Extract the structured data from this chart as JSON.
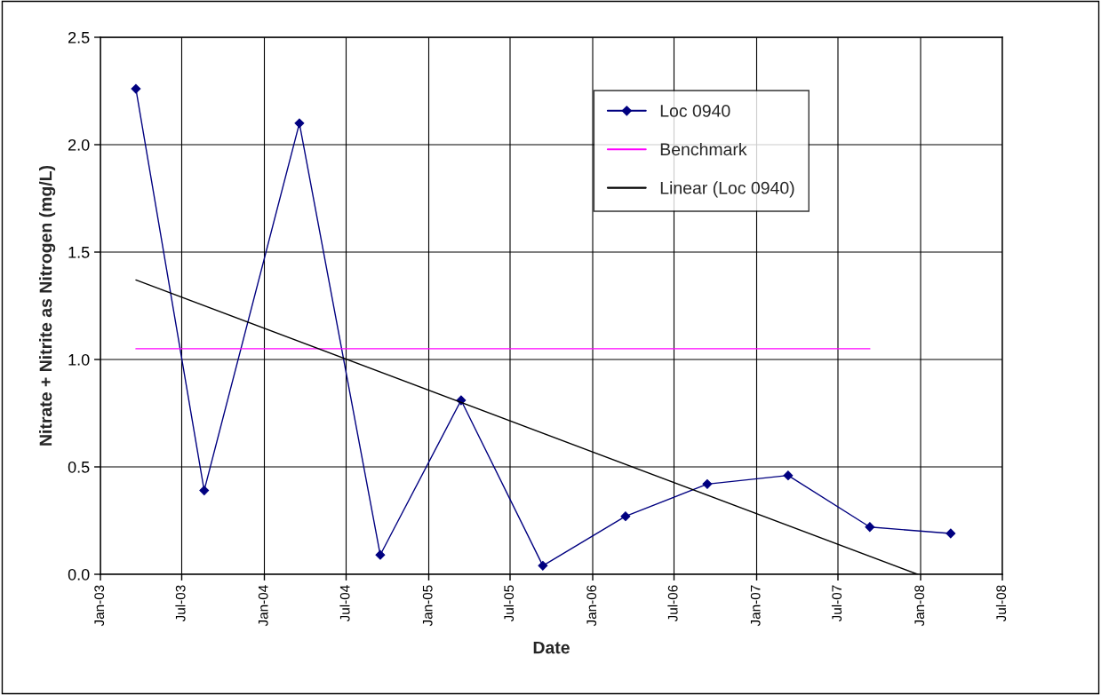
{
  "chart_data": {
    "type": "line",
    "xlabel": "Date",
    "ylabel": "Nitrate + Nitrite as Nitrogen (mg/L)",
    "x": [
      "2003-03-21",
      "2003-08-20",
      "2004-03-19",
      "2004-09-15",
      "2005-03-14",
      "2005-09-12",
      "2006-03-15",
      "2006-09-13",
      "2007-03-12",
      "2007-09-10",
      "2008-03-08"
    ],
    "series": [
      {
        "name": "Loc 0940",
        "color": "#000080",
        "marker": "diamond",
        "values": [
          2.26,
          0.39,
          2.1,
          0.09,
          0.81,
          0.04,
          0.27,
          0.42,
          0.46,
          0.22,
          0.19
        ]
      },
      {
        "name": "Benchmark",
        "color": "#ff00ff",
        "marker": "none",
        "x": [
          "2003-03-21",
          "2007-09-10"
        ],
        "values": [
          1.05,
          1.05
        ]
      },
      {
        "name": "Linear (Loc 0940)",
        "color": "#000000",
        "marker": "none",
        "x": [
          "2003-03-21",
          "2007-12-25"
        ],
        "values": [
          1.37,
          0.0
        ]
      }
    ],
    "xlim": [
      "2003-01-01",
      "2008-07-01"
    ],
    "xticks": [
      {
        "value": "2003-01-01",
        "label": "Jan-03"
      },
      {
        "value": "2003-07-01",
        "label": "Jul-03"
      },
      {
        "value": "2004-01-01",
        "label": "Jan-04"
      },
      {
        "value": "2004-07-01",
        "label": "Jul-04"
      },
      {
        "value": "2005-01-01",
        "label": "Jan-05"
      },
      {
        "value": "2005-07-01",
        "label": "Jul-05"
      },
      {
        "value": "2006-01-01",
        "label": "Jan-06"
      },
      {
        "value": "2006-07-01",
        "label": "Jul-06"
      },
      {
        "value": "2007-01-01",
        "label": "Jan-07"
      },
      {
        "value": "2007-07-01",
        "label": "Jul-07"
      },
      {
        "value": "2008-01-01",
        "label": "Jan-08"
      },
      {
        "value": "2008-07-01",
        "label": "Jul-08"
      }
    ],
    "ylim": [
      0,
      2.5
    ],
    "yticks": [
      {
        "value": 0,
        "label": "0.0"
      },
      {
        "value": 0.5,
        "label": "0.5"
      },
      {
        "value": 1.0,
        "label": "1.0"
      },
      {
        "value": 1.5,
        "label": "1.5"
      },
      {
        "value": 2.0,
        "label": "2.0"
      },
      {
        "value": 2.5,
        "label": "2.5"
      }
    ],
    "grid": true,
    "legend": "top right",
    "line_style": "solid"
  }
}
